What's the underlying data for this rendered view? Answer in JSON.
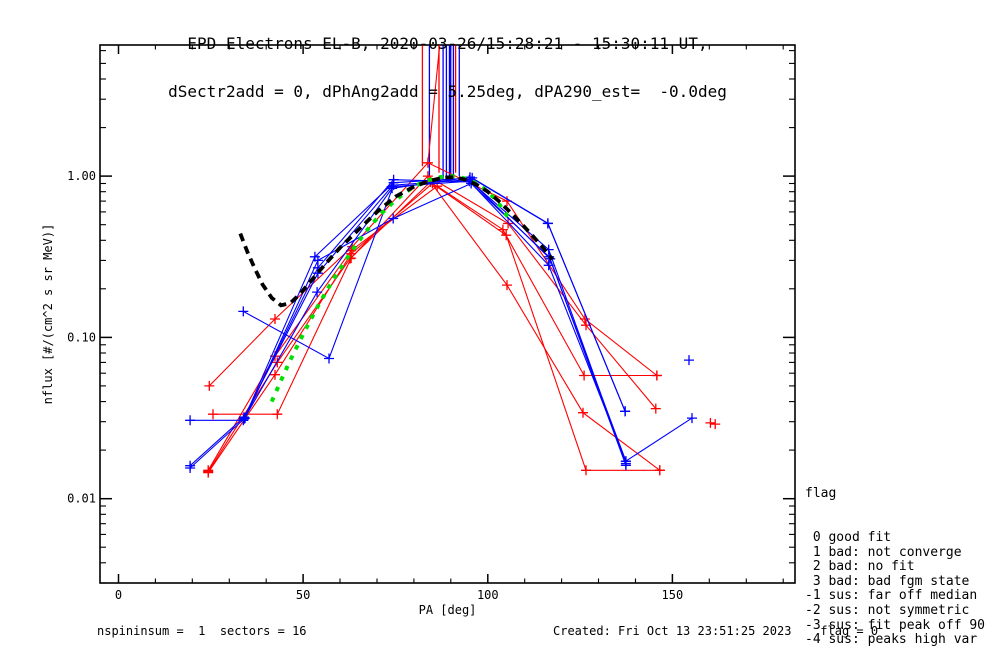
{
  "title": {
    "line1": "EPD Electrons EL-B, 2020-03-26/15:28:21 - 15:30:11 UT,",
    "line2": "dSectr2add = 0, dPhAng2add = 5.25deg, dPA290_est=  -0.0deg"
  },
  "legend": {
    "title": "flag",
    "lines": [
      " 0 good fit",
      " 1 bad: not converge",
      " 2 bad: no fit",
      " 3 bad: bad fgm state",
      "-1 sus: far off median",
      "-2 sus: not symmetric",
      "-3 sus: fit peak off 90",
      "-4 sus: peaks high var"
    ]
  },
  "footer": {
    "left": "nspininsum =  1  sectors = 16",
    "right": "Created: Fri Oct 13 23:51:25 2023    flag = 0"
  },
  "colors": {
    "red": "#ff0000",
    "blue": "#0000ff",
    "green": "#00e000",
    "black": "#000000",
    "axis": "#000000"
  },
  "chart_data": {
    "type": "line",
    "xlabel": "PA [deg]",
    "ylabel": "nflux [#/(cm^2 s sr MeV)]",
    "xlim": [
      -5,
      183.2
    ],
    "ylim": [
      0.003,
      6.5
    ],
    "ylog": true,
    "grid": false,
    "xticks": {
      "major": [
        0,
        50,
        100,
        150
      ],
      "labels": [
        "0",
        "50",
        "100",
        "150"
      ],
      "minor_step": 10,
      "minor_max": 180
    },
    "ytick_labels": [
      {
        "v": 1.0,
        "label": "1.00"
      },
      {
        "v": 0.1,
        "label": "0.10"
      },
      {
        "v": 0.01,
        "label": "0.01"
      }
    ],
    "fit_curves": [
      {
        "name": "black-dashed-fit",
        "color": "#000000",
        "width": 3.8,
        "dash": "8 5.5",
        "points": [
          [
            33,
            0.44
          ],
          [
            35,
            0.335
          ],
          [
            37,
            0.265
          ],
          [
            39,
            0.213
          ],
          [
            41.5,
            0.176
          ],
          [
            44,
            0.158
          ],
          [
            46.5,
            0.163
          ],
          [
            49,
            0.184
          ],
          [
            52,
            0.222
          ],
          [
            56,
            0.285
          ],
          [
            60,
            0.36
          ],
          [
            65,
            0.465
          ],
          [
            70,
            0.6
          ],
          [
            75,
            0.745
          ],
          [
            80,
            0.86
          ],
          [
            84,
            0.93
          ],
          [
            88,
            0.98
          ],
          [
            91,
            0.985
          ],
          [
            94,
            0.95
          ],
          [
            97,
            0.885
          ],
          [
            100,
            0.8
          ],
          [
            103,
            0.7
          ],
          [
            106,
            0.6
          ],
          [
            109,
            0.51
          ],
          [
            112,
            0.43
          ],
          [
            115,
            0.36
          ],
          [
            117.5,
            0.305
          ]
        ]
      },
      {
        "name": "green-dotted-fit",
        "color": "#00e000",
        "width": 4.0,
        "dash": "4.5 7",
        "points": [
          [
            41.5,
            0.04
          ],
          [
            44,
            0.054
          ],
          [
            46.5,
            0.072
          ],
          [
            49,
            0.094
          ],
          [
            51.5,
            0.122
          ],
          [
            54,
            0.156
          ],
          [
            56.5,
            0.197
          ],
          [
            59,
            0.245
          ],
          [
            61.5,
            0.3
          ],
          [
            64,
            0.365
          ],
          [
            66.5,
            0.437
          ],
          [
            69,
            0.515
          ],
          [
            71.5,
            0.595
          ],
          [
            74,
            0.675
          ],
          [
            76.5,
            0.755
          ],
          [
            79,
            0.83
          ],
          [
            81.5,
            0.895
          ],
          [
            84,
            0.945
          ],
          [
            86.5,
            0.98
          ],
          [
            89,
            1.0
          ],
          [
            91.5,
            0.995
          ],
          [
            94,
            0.965
          ],
          [
            96.5,
            0.91
          ],
          [
            99,
            0.835
          ],
          [
            101.5,
            0.74
          ],
          [
            103.5,
            0.65
          ],
          [
            105.5,
            0.555
          ]
        ]
      }
    ],
    "series": [
      {
        "name": "red-1",
        "color": "#ff0000",
        "points": [
          [
            24.6,
            0.05
          ],
          [
            42.4,
            0.13
          ],
          [
            63.3,
            0.365
          ],
          [
            83.8,
            1.21
          ],
          [
            105.2,
            0.7
          ],
          [
            126.3,
            0.13
          ],
          [
            145.8,
            0.058
          ]
        ]
      },
      {
        "name": "red-2",
        "color": "#ff0000",
        "points": [
          [
            25.6,
            0.0334
          ],
          [
            43.0,
            0.0334
          ],
          [
            63.0,
            0.31
          ],
          [
            83.8,
            1.0
          ],
          [
            105.5,
            0.508
          ],
          [
            126.6,
            0.119
          ],
          [
            145.5,
            0.0362
          ]
        ]
      },
      {
        "name": "red-3",
        "color": "#ff0000",
        "points": [
          [
            24.3,
            0.015
          ],
          [
            42.4,
            0.0765
          ],
          [
            63.0,
            0.345
          ],
          [
            86.3,
            0.866
          ],
          [
            104.1,
            0.466
          ],
          [
            126.1,
            0.058
          ],
          [
            145.8,
            0.058
          ]
        ]
      },
      {
        "name": "red-4",
        "color": "#ff0000",
        "points": [
          [
            24.3,
            0.0147
          ],
          [
            43.0,
            0.07
          ],
          [
            62.7,
            0.308
          ],
          [
            84.5,
            0.92
          ],
          [
            105.2,
            0.211
          ],
          [
            125.8,
            0.0341
          ],
          [
            146.6,
            0.015
          ]
        ]
      },
      {
        "name": "red-5",
        "color": "#ff0000",
        "points": [
          [
            24.3,
            0.0145
          ],
          [
            42.4,
            0.0587
          ],
          [
            63.0,
            0.33
          ],
          [
            85.0,
            0.9
          ],
          [
            105.0,
            0.43
          ],
          [
            126.6,
            0.015
          ],
          [
            146.6,
            0.015
          ]
        ]
      },
      {
        "name": "blue-1",
        "color": "#0000ff",
        "points": [
          [
            19.4,
            0.0306
          ],
          [
            33.8,
            0.0306
          ],
          [
            53.8,
            0.191
          ],
          [
            74.1,
            0.84
          ],
          [
            95.2,
            0.985
          ],
          [
            116.3,
            0.508
          ],
          [
            137.2,
            0.0348
          ]
        ]
      },
      {
        "name": "blue-2",
        "color": "#0000ff",
        "points": [
          [
            19.4,
            0.0155
          ],
          [
            34.3,
            0.0316
          ],
          [
            54.0,
            0.3
          ],
          [
            74.4,
            0.546
          ],
          [
            95.5,
            0.9
          ],
          [
            116.6,
            0.316
          ],
          [
            137.4,
            0.0171
          ],
          [
            155.3,
            0.0316
          ]
        ]
      },
      {
        "name": "blue-3",
        "color": "#0000ff",
        "points": [
          [
            33.8,
            0.145
          ],
          [
            57.0,
            0.074
          ],
          [
            74.5,
            0.88
          ],
          [
            95.0,
            0.95
          ],
          [
            116.9,
            0.307
          ],
          [
            137.4,
            0.0161
          ]
        ]
      },
      {
        "name": "blue-4",
        "color": "#0000ff",
        "points": [
          [
            34.0,
            0.0316
          ],
          [
            54.0,
            0.27
          ],
          [
            74.5,
            0.95
          ],
          [
            95.5,
            0.92
          ],
          [
            116.5,
            0.35
          ],
          [
            137.4,
            0.0165
          ]
        ]
      },
      {
        "name": "blue-5",
        "color": "#0000ff",
        "points": [
          [
            34.0,
            0.0312
          ],
          [
            53.2,
            0.316
          ],
          [
            74.5,
            0.91
          ],
          [
            95.8,
            0.975
          ],
          [
            116.3,
            0.51
          ],
          [
            137.2,
            0.0348
          ]
        ]
      },
      {
        "name": "blue-6",
        "color": "#0000ff",
        "points": [
          [
            19.4,
            0.016
          ],
          [
            34.0,
            0.032
          ],
          [
            54.0,
            0.25
          ],
          [
            74.0,
            0.86
          ],
          [
            95.0,
            0.93
          ],
          [
            116.5,
            0.28
          ],
          [
            137.4,
            0.017
          ]
        ]
      }
    ],
    "isolated_points": [
      {
        "name": "red-isolated",
        "color": "#ff0000",
        "points": [
          [
            160.3,
            0.0295
          ],
          [
            161.6,
            0.029
          ]
        ]
      },
      {
        "name": "blue-isolated",
        "color": "#0000ff",
        "points": [
          [
            154.5,
            0.0723
          ]
        ]
      }
    ],
    "clipped_vertical_lines": [
      {
        "pa": 82.3,
        "color": "#ff0000",
        "to": 1.15,
        "w": 1.3
      },
      {
        "pa": 84.2,
        "color": "#0000ff",
        "to": 1.0,
        "w": 1.3
      },
      {
        "pa": 86.8,
        "color": "#ff0000",
        "to": 1.05,
        "w": 1.3
      },
      {
        "pa": 87.9,
        "color": "#0000ff",
        "to": 0.95,
        "w": 1.3
      },
      {
        "pa": 88.8,
        "color": "#0000ff",
        "to": 1.0,
        "w": 1.3
      },
      {
        "pa": 89.8,
        "color": "#0000ff",
        "to": 1.0,
        "w": 2.6
      },
      {
        "pa": 90.7,
        "color": "#0000ff",
        "to": 0.98,
        "w": 1.3
      },
      {
        "pa": 91.3,
        "color": "#ff0000",
        "to": 1.05,
        "w": 1.3
      },
      {
        "pa": 92.3,
        "color": "#0000ff",
        "to": 1.0,
        "w": 1.3
      }
    ],
    "extra_segments": [
      {
        "name": "red-offscale-slant",
        "color": "#ff0000",
        "points": [
          [
            83.8,
            1.21
          ],
          [
            87.0,
            6.5
          ]
        ]
      }
    ]
  }
}
